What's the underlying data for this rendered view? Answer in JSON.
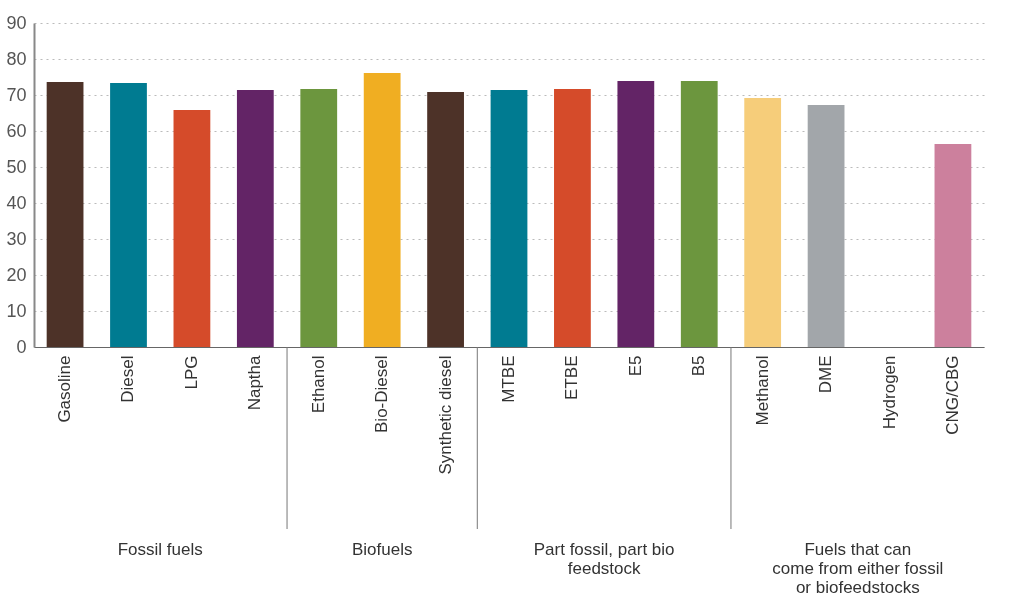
{
  "chart_data": {
    "type": "bar",
    "categories": [
      "Gasoline",
      "Diesel",
      "LPG",
      "Naptha",
      "Ethanol",
      "Bio-Diesel",
      "Synthetic diesel",
      "MTBE",
      "ETBE",
      "E5",
      "B5",
      "Methanol",
      "DME",
      "Hydrogen",
      "CNG/CBG"
    ],
    "values": [
      73.6,
      73.3,
      65.8,
      71.4,
      71.7,
      76.1,
      70.8,
      71.4,
      71.7,
      73.9,
      73.9,
      69.2,
      67.2,
      null,
      56.4
    ],
    "colors": [
      "#4d3228",
      "#007b91",
      "#d54b2a",
      "#632466",
      "#6c963e",
      "#f0ae22",
      "#4d3228",
      "#007b91",
      "#d54b2a",
      "#632466",
      "#6c963e",
      "#f6cd7a",
      "#a2a6aa",
      "#cccccc",
      "#cc809d"
    ],
    "ylim": [
      0,
      90
    ],
    "yticks": [
      0,
      10,
      20,
      30,
      40,
      50,
      60,
      70,
      80,
      90
    ],
    "grid": "y",
    "annotations": [
      "Fossil fuels",
      "Biofuels",
      "Part fossil, part bio\nfeedstock",
      "Fuels that can\ncome from either fossil\nor biofeedstocks"
    ]
  }
}
